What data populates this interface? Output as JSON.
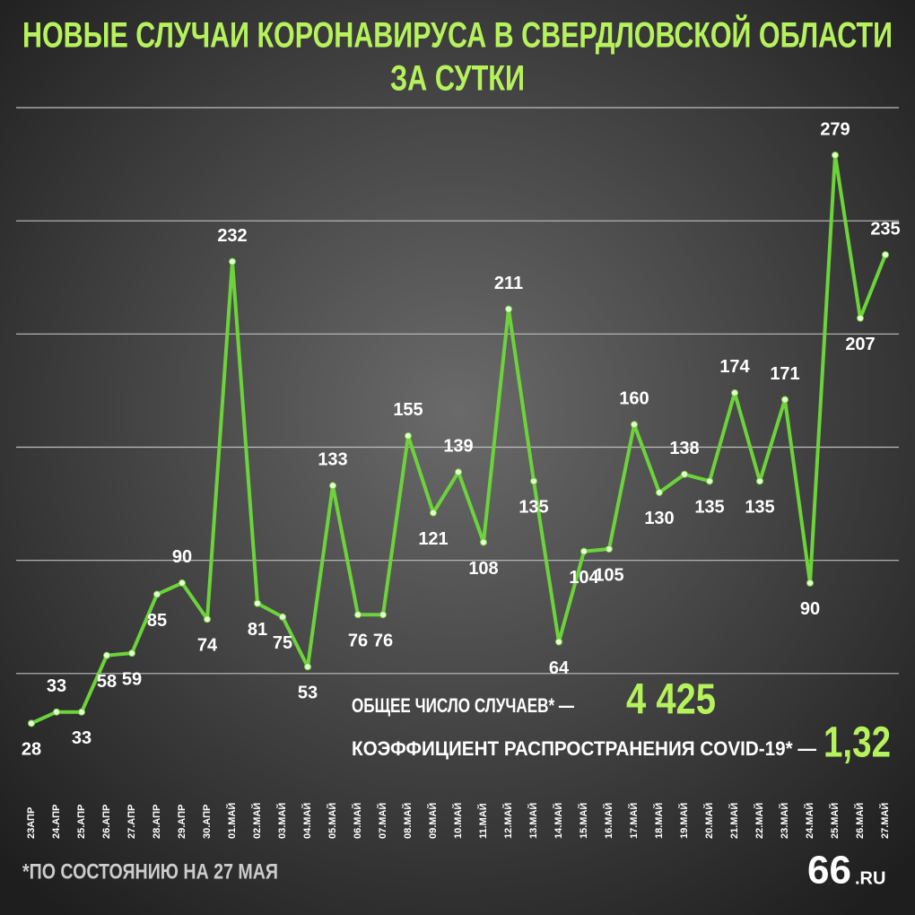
{
  "chart_data": {
    "type": "line",
    "title": [
      "НОВЫЕ СЛУЧАИ КОРОНАВИРУСА В СВЕРДЛОВСКОЙ ОБЛАСТИ",
      "ЗА СУТКИ"
    ],
    "categories": [
      "23АПР",
      "24.АПР",
      "25.АПР",
      "26.АПР",
      "27.АПР",
      "28.АПР",
      "29.АПР",
      "30.АПР",
      "01.МАЙ",
      "02.МАЙ",
      "03.МАЙ",
      "04.МАЙ",
      "05.МАЙ",
      "06.МАЙ",
      "07.МАЙ",
      "08.МАЙ",
      "09.МАЙ",
      "10.МАЙ",
      "11.МАЙ",
      "12.МАЙ",
      "13.МАЙ",
      "14.МАЙ",
      "15.МАЙ",
      "16.МАЙ",
      "17.МАЙ",
      "18.МАЙ",
      "19.МАЙ",
      "20.МАЙ",
      "21.МАЙ",
      "22.МАЙ",
      "23.МАЙ",
      "24.МАЙ",
      "25.МАЙ",
      "26.МАЙ",
      "27.МАЙ"
    ],
    "values": [
      28,
      33,
      33,
      58,
      59,
      85,
      90,
      74,
      232,
      81,
      75,
      53,
      133,
      76,
      76,
      155,
      121,
      139,
      108,
      211,
      135,
      64,
      104,
      105,
      160,
      130,
      138,
      135,
      174,
      135,
      171,
      90,
      279,
      207,
      235
    ],
    "color": "#6cd43a",
    "ylim": [
      0,
      300
    ],
    "yticks": [
      50,
      100,
      150,
      200,
      250,
      300
    ],
    "grid": true,
    "annotations": [
      {
        "text": "ОБЩЕЕ ЧИСЛО СЛУЧАЕВ* —",
        "value": "4 425"
      },
      {
        "text": "КОЭФФИЦИЕНТ РАСПРОСТРАНЕНИЯ COVID-19* —",
        "value": "1,32"
      }
    ],
    "footnote": "*ПО СОСТОЯНИЮ НА 27 МАЯ",
    "logo": [
      "66",
      ".RU"
    ]
  }
}
